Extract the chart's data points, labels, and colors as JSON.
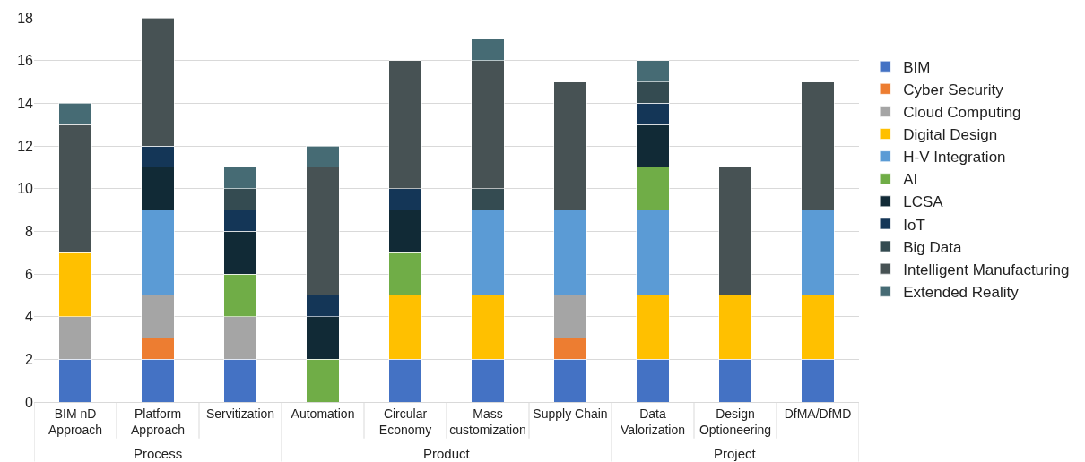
{
  "chart_data": {
    "type": "bar",
    "stacked": true,
    "categories": [
      "BIM nD Approach",
      "Platform Approach",
      "Servitization",
      "Automation",
      "Circular Economy",
      "Mass customization",
      "Supply Chain",
      "Data Valorization",
      "Design Optioneering",
      "DfMA/DfMD"
    ],
    "series": [
      {
        "name": "BIM",
        "color": "#4472c4",
        "values": [
          2,
          2,
          2,
          null,
          2,
          2,
          2,
          2,
          2,
          2
        ]
      },
      {
        "name": "Cyber Security",
        "color": "#ed7d31",
        "values": [
          null,
          1,
          null,
          null,
          null,
          null,
          1,
          null,
          null,
          null
        ]
      },
      {
        "name": "Cloud Computing",
        "color": "#a5a5a5",
        "values": [
          2,
          2,
          2,
          null,
          null,
          null,
          2,
          null,
          null,
          null
        ]
      },
      {
        "name": "Digital Design",
        "color": "#ffc000",
        "values": [
          3,
          null,
          null,
          null,
          3,
          3,
          null,
          3,
          3,
          3
        ]
      },
      {
        "name": "H-V Integration",
        "color": "#5b9bd5",
        "values": [
          null,
          4,
          null,
          null,
          null,
          4,
          4,
          4,
          null,
          4
        ]
      },
      {
        "name": "AI",
        "color": "#70ad47",
        "values": [
          null,
          null,
          2,
          2,
          2,
          null,
          null,
          2,
          null,
          null
        ]
      },
      {
        "name": "LCSA",
        "color": "#112a36",
        "values": [
          null,
          2,
          2,
          2,
          2,
          null,
          null,
          2,
          null,
          null
        ]
      },
      {
        "name": "IoT",
        "color": "#143657",
        "values": [
          null,
          1,
          1,
          1,
          1,
          null,
          null,
          1,
          null,
          null
        ]
      },
      {
        "name": "Big Data",
        "color": "#344b51",
        "values": [
          null,
          null,
          1,
          null,
          null,
          1,
          null,
          1,
          null,
          null
        ]
      },
      {
        "name": "Intelligent Manufacturing",
        "color": "#475254",
        "values": [
          6,
          6,
          null,
          6,
          6,
          6,
          6,
          null,
          6,
          6
        ]
      },
      {
        "name": "Extended Reality",
        "color": "#466b74",
        "values": [
          1,
          null,
          1,
          1,
          null,
          1,
          null,
          1,
          null,
          null
        ]
      }
    ],
    "annotations": [
      "Process",
      "Product",
      "Project"
    ],
    "ylim": [
      0,
      18
    ],
    "yticks": [
      0,
      2,
      4,
      6,
      8,
      10,
      12,
      14,
      16,
      18
    ],
    "grid": "y",
    "legend": "right"
  }
}
